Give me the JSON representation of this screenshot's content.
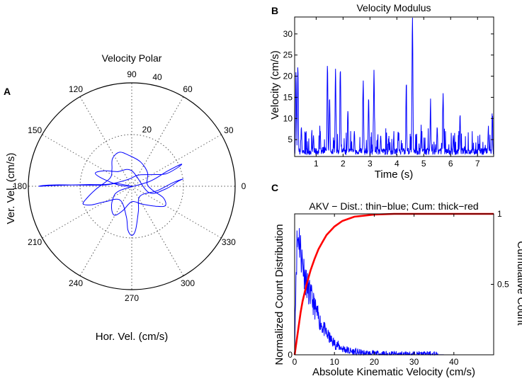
{
  "figure": {
    "panel_a_letter": "A",
    "panel_b_letter": "B",
    "panel_c_letter": "C"
  },
  "colors": {
    "blue": "#0000ff",
    "red": "#ff0000",
    "axis": "#000000",
    "grid": "#555555"
  },
  "chart_data": [
    {
      "id": "velocity_polar",
      "type": "polar",
      "title": "Velocity Polar",
      "xlabel": "Hor. Vel. (cm/s)",
      "ylabel": "Ver. Vel. (cm/s)",
      "rlim": [
        0,
        40
      ],
      "radial_ticks": [
        {
          "value": 20,
          "label": "20"
        },
        {
          "value": 40,
          "label": "40"
        }
      ],
      "angle_ticks": [
        {
          "deg": 0,
          "label": "0"
        },
        {
          "deg": 30,
          "label": "30"
        },
        {
          "deg": 60,
          "label": "60"
        },
        {
          "deg": 90,
          "label": "90"
        },
        {
          "deg": 120,
          "label": "120"
        },
        {
          "deg": 150,
          "label": "150"
        },
        {
          "deg": 180,
          "label": "180"
        },
        {
          "deg": 210,
          "label": "210"
        },
        {
          "deg": 240,
          "label": "240"
        },
        {
          "deg": 270,
          "label": "270"
        },
        {
          "deg": 300,
          "label": "300"
        },
        {
          "deg": 330,
          "label": "330"
        }
      ],
      "series_color": "#0000ff",
      "trajectory_deg_r": [
        [
          0,
          0
        ],
        [
          170,
          6
        ],
        [
          178,
          12
        ],
        [
          179,
          30
        ],
        [
          180,
          36
        ],
        [
          179.5,
          30
        ],
        [
          178,
          18
        ],
        [
          175,
          9
        ],
        [
          120,
          3
        ],
        [
          60,
          5
        ],
        [
          30,
          9
        ],
        [
          20,
          14
        ],
        [
          22,
          19
        ],
        [
          24,
          21
        ],
        [
          23,
          15
        ],
        [
          15,
          7
        ],
        [
          200,
          5
        ],
        [
          215,
          9
        ],
        [
          230,
          12
        ],
        [
          240,
          13
        ],
        [
          250,
          10
        ],
        [
          270,
          6
        ],
        [
          300,
          8
        ],
        [
          320,
          12
        ],
        [
          330,
          15
        ],
        [
          340,
          13
        ],
        [
          350,
          8
        ],
        [
          10,
          6
        ],
        [
          40,
          8
        ],
        [
          70,
          10
        ],
        [
          95,
          12
        ],
        [
          110,
          14
        ],
        [
          125,
          13
        ],
        [
          140,
          10
        ],
        [
          160,
          9
        ],
        [
          185,
          14
        ],
        [
          195,
          18
        ],
        [
          200,
          20
        ],
        [
          205,
          17
        ],
        [
          210,
          12
        ],
        [
          230,
          7
        ],
        [
          260,
          12
        ],
        [
          265,
          17
        ],
        [
          270,
          19
        ],
        [
          275,
          17
        ],
        [
          285,
          10
        ],
        [
          310,
          5
        ],
        [
          350,
          10
        ],
        [
          5,
          16
        ],
        [
          8,
          20
        ],
        [
          6,
          18
        ],
        [
          355,
          13
        ],
        [
          340,
          7
        ],
        [
          90,
          6
        ],
        [
          135,
          8
        ],
        [
          150,
          12
        ],
        [
          160,
          15
        ],
        [
          165,
          12
        ],
        [
          175,
          5
        ],
        [
          0,
          0
        ]
      ]
    },
    {
      "id": "velocity_modulus",
      "type": "line",
      "title": "Velocity Modulus",
      "xlabel": "Time (s)",
      "ylabel": "Velocity (cm/s)",
      "xlim": [
        0.2,
        7.6
      ],
      "ylim": [
        1,
        34
      ],
      "xticks": [
        1,
        2,
        3,
        4,
        5,
        6,
        7
      ],
      "xtick_labels": [
        "1",
        "2",
        "3",
        "4",
        "5",
        "6",
        "7"
      ],
      "yticks": [
        5,
        10,
        15,
        20,
        25,
        30
      ],
      "ytick_labels": [
        "5",
        "10",
        "15",
        "20",
        "25",
        "30"
      ],
      "series_color": "#0000ff",
      "peaks": [
        [
          0.25,
          21
        ],
        [
          0.32,
          22.5
        ],
        [
          0.45,
          8
        ],
        [
          0.9,
          6
        ],
        [
          1.15,
          6.5
        ],
        [
          1.42,
          22.8
        ],
        [
          1.5,
          15
        ],
        [
          1.72,
          21.8
        ],
        [
          1.9,
          21.8
        ],
        [
          2.18,
          12
        ],
        [
          2.42,
          7
        ],
        [
          2.75,
          19
        ],
        [
          2.95,
          15
        ],
        [
          3.15,
          21.5
        ],
        [
          3.4,
          6
        ],
        [
          3.7,
          4
        ],
        [
          4.05,
          7
        ],
        [
          4.35,
          15
        ],
        [
          4.58,
          34
        ],
        [
          4.9,
          6
        ],
        [
          5.25,
          12.5
        ],
        [
          5.5,
          8
        ],
        [
          5.72,
          16
        ],
        [
          6.1,
          6
        ],
        [
          6.35,
          11
        ],
        [
          6.65,
          3
        ],
        [
          7.05,
          4
        ],
        [
          7.4,
          7
        ],
        [
          7.55,
          8
        ]
      ]
    },
    {
      "id": "akv_distribution",
      "type": "line",
      "title": "AKV − Dist.: thin−blue; Cum: thick−red",
      "xlabel": "Absolute Kinematic Velocity (cm/s)",
      "ylabel_left": "Normalized Count Distribution",
      "ylabel_right": "Cumulative Count",
      "xlim": [
        0,
        50
      ],
      "ylim_left": [
        0,
        1
      ],
      "ylim_right": [
        0,
        1
      ],
      "xticks": [
        0,
        10,
        20,
        30,
        40
      ],
      "xtick_labels": [
        "0",
        "10",
        "20",
        "30",
        "40"
      ],
      "yticks_left": [
        0
      ],
      "ytick_labels_left": [
        "0"
      ],
      "yticks_right": [
        0.5,
        1
      ],
      "ytick_labels_right": [
        "0.5",
        "1"
      ],
      "series": [
        {
          "name": "Dist.",
          "color": "#0000ff",
          "x": [
            0,
            0.3,
            0.6,
            1.0,
            1.3,
            1.6,
            2.0,
            2.5,
            3.0,
            3.5,
            4.0,
            5.0,
            6.0,
            7.0,
            8.0,
            9.0,
            10.0,
            12.0,
            14.0,
            16.0,
            18.0,
            20.0,
            25.0,
            30.0,
            35.0,
            40.0,
            45.0,
            50.0
          ],
          "y": [
            0,
            0.55,
            0.78,
            0.86,
            0.8,
            0.72,
            0.65,
            0.58,
            0.5,
            0.46,
            0.42,
            0.34,
            0.26,
            0.2,
            0.15,
            0.11,
            0.08,
            0.045,
            0.025,
            0.015,
            0.008,
            0.005,
            0.002,
            0.001,
            0.0005,
            0,
            0,
            0
          ]
        },
        {
          "name": "Cum.",
          "color": "#ff0000",
          "x": [
            0,
            0.5,
            1.0,
            1.5,
            2.0,
            3.0,
            4.0,
            5.0,
            6.0,
            7.0,
            8.0,
            10.0,
            12.0,
            15.0,
            20.0,
            25.0,
            30.0,
            40.0,
            50.0
          ],
          "y": [
            0,
            0.1,
            0.2,
            0.3,
            0.38,
            0.5,
            0.6,
            0.68,
            0.75,
            0.8,
            0.85,
            0.91,
            0.95,
            0.98,
            0.995,
            1,
            1,
            1,
            1
          ]
        }
      ]
    }
  ]
}
